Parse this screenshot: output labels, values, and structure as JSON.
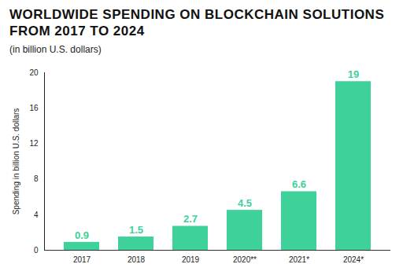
{
  "chart_data": {
    "type": "bar",
    "title": "WORLDWIDE SPENDING ON BLOCKCHAIN SOLUTIONS FROM 2017 TO 2024",
    "subtitle": "(in billion U.S. dollars)",
    "y_label": "Spending in billion U.S. dollars",
    "categories": [
      "2017",
      "2018",
      "2019",
      "2020**",
      "2021*",
      "2024*"
    ],
    "values": [
      0.9,
      1.5,
      2.7,
      4.5,
      6.6,
      19
    ],
    "color": "#3fd19a",
    "ylim": [
      0,
      20
    ],
    "yticks": [
      0,
      4,
      8,
      12,
      16,
      20
    ],
    "grid": false,
    "data_labels": true
  }
}
